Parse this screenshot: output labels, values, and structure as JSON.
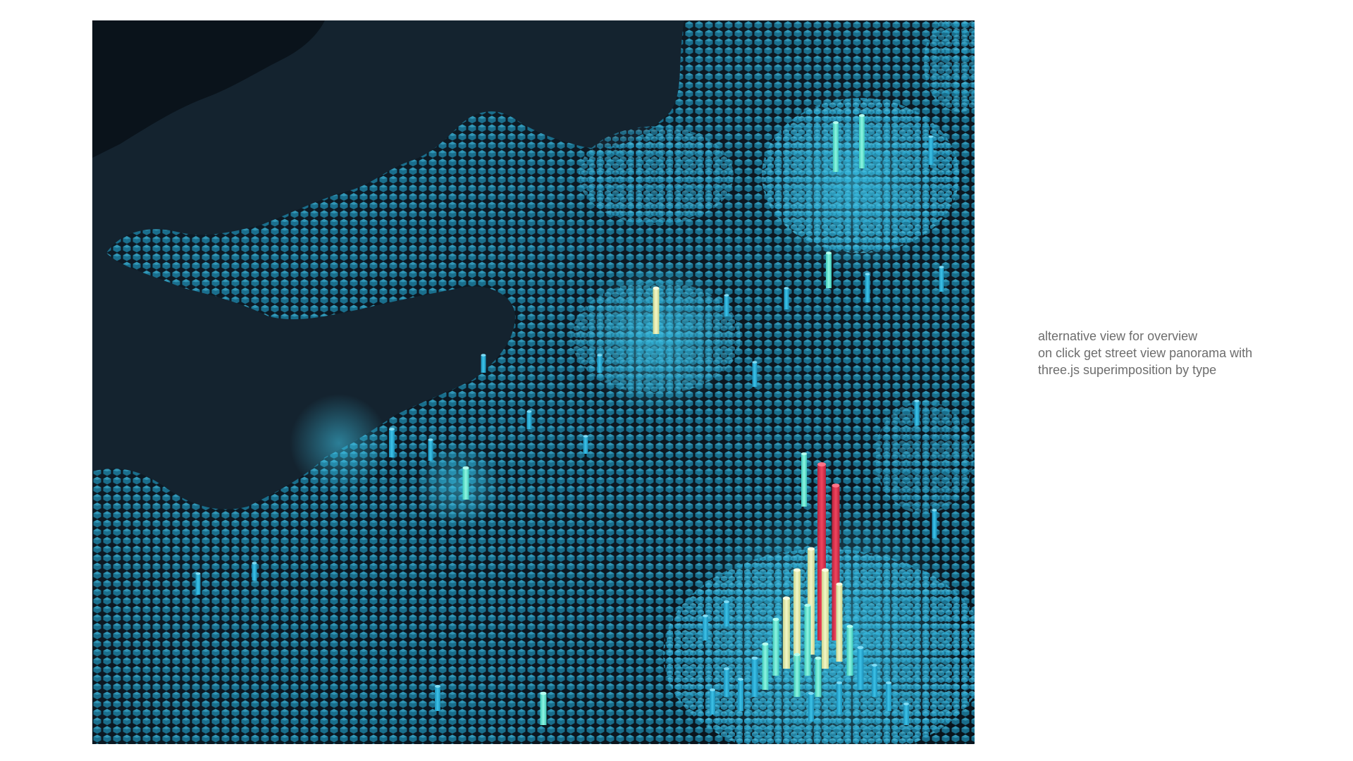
{
  "annotation": {
    "lines": [
      "alternative view for overview",
      "on click get street view panorama with",
      "three.js superimposition by type"
    ]
  },
  "map": {
    "style": "dark",
    "layer": "3d-hexagon-columns",
    "colors": {
      "background_water": "#14232f",
      "land": "#0c1720",
      "hex_low": "#1a8fb3",
      "hex_mid": "#2fb6dc",
      "hex_high": "#5fe0d0",
      "hex_higher": "#e8f2b0",
      "hex_peak": "#e8314f"
    }
  }
}
